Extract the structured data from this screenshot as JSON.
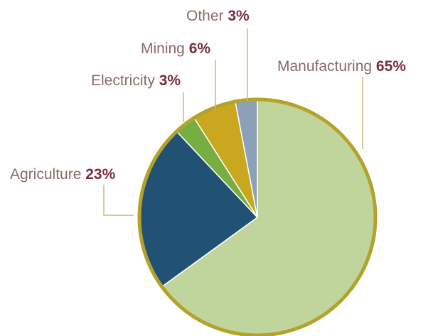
{
  "chart_data": {
    "type": "pie",
    "title": "",
    "slices": [
      {
        "name": "Manufacturing",
        "value": 65,
        "value_label": "65%",
        "color": "#c0d59b"
      },
      {
        "name": "Agriculture",
        "value": 23,
        "value_label": "23%",
        "color": "#215274"
      },
      {
        "name": "Electricity",
        "value": 3,
        "value_label": "3%",
        "color": "#76ae42"
      },
      {
        "name": "Mining",
        "value": 6,
        "value_label": "6%",
        "color": "#c9a71e"
      },
      {
        "name": "Other",
        "value": 3,
        "value_label": "3%",
        "color": "#8ca1b8"
      }
    ],
    "start_angle_deg": 0,
    "direction": "clockwise",
    "outline_color": "#b3a22b",
    "leader_color": "#c7bc6a",
    "label_color": "#8a6a66",
    "value_color": "#7b2e3a"
  }
}
